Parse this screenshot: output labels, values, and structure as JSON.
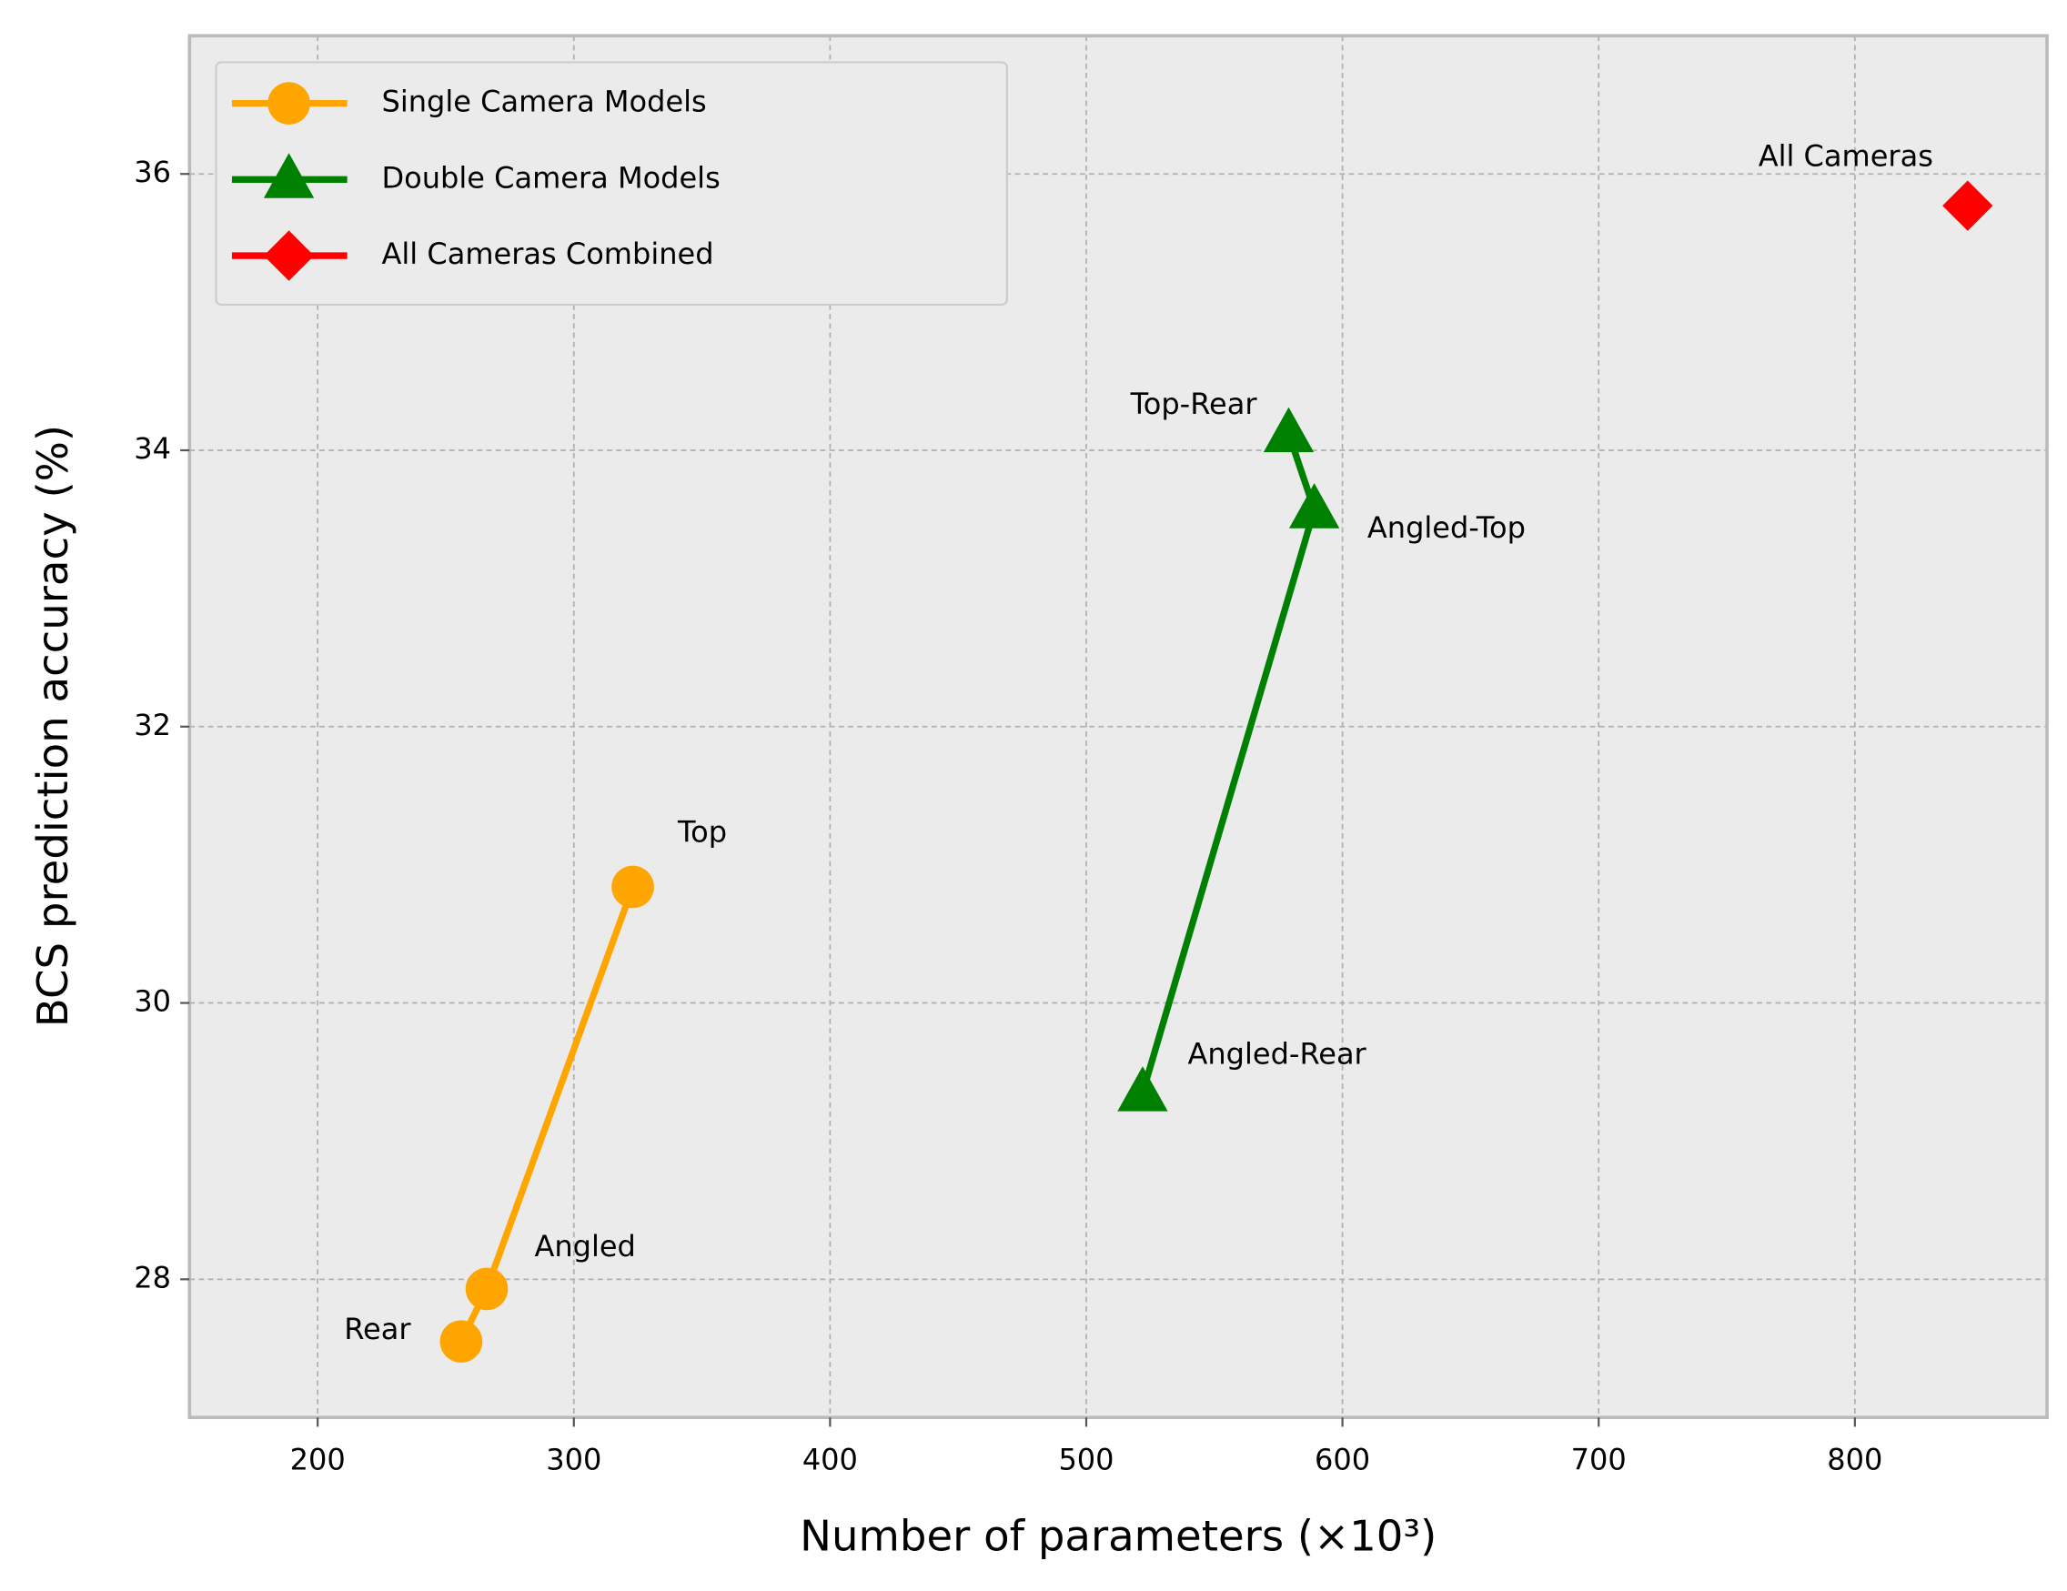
{
  "chart_data": {
    "type": "line",
    "x_label": "Number of parameters (×10³)",
    "y_label": "BCS prediction accuracy (%)",
    "xlim": [
      150,
      875
    ],
    "ylim": [
      27,
      37
    ],
    "xticks": [
      200,
      300,
      400,
      500,
      600,
      700,
      800
    ],
    "yticks": [
      28,
      30,
      32,
      34,
      36
    ],
    "grid": true,
    "legend": "upper left",
    "series": [
      {
        "name": "Single Camera Models",
        "color": "#ffa500",
        "marker": "circle",
        "x": [
          256,
          266,
          323
        ],
        "values": [
          27.55,
          27.93,
          30.84
        ],
        "point_labels": [
          "Rear",
          "Angled",
          "Top"
        ]
      },
      {
        "name": "Double Camera Models",
        "color": "#008000",
        "marker": "triangle",
        "x": [
          522,
          589,
          579
        ],
        "values": [
          29.35,
          33.57,
          34.12
        ],
        "point_labels": [
          "Angled-Rear",
          "Angled-Top",
          "Top-Rear"
        ]
      },
      {
        "name": "All Cameras Combined",
        "color": "#ff0000",
        "marker": "diamond",
        "x": [
          844
        ],
        "values": [
          35.77
        ],
        "point_labels": [
          "All Cameras"
        ]
      }
    ]
  }
}
